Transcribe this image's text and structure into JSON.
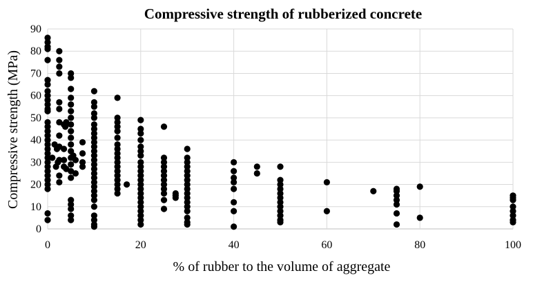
{
  "chart_data": {
    "type": "scatter",
    "title": "Compressive strength of rubberized concrete",
    "xlabel": "% of rubber to the volume of aggregate",
    "ylabel": "Compressive strength (MPa)",
    "xlim": [
      0,
      100
    ],
    "ylim": [
      0,
      90
    ],
    "x_ticks": [
      0,
      20,
      40,
      60,
      80,
      100
    ],
    "y_ticks": [
      0,
      10,
      20,
      30,
      40,
      50,
      60,
      70,
      80,
      90
    ],
    "grid": true,
    "legend": "none",
    "marker_color": "#000000",
    "grid_color": "#d9d9d9",
    "series": [
      {
        "points": [
          [
            0,
            86
          ],
          [
            0,
            84
          ],
          [
            0,
            82
          ],
          [
            0,
            81
          ],
          [
            0,
            76
          ],
          [
            0,
            67
          ],
          [
            0,
            65
          ],
          [
            0,
            62
          ],
          [
            0,
            60
          ],
          [
            0,
            58
          ],
          [
            0,
            56
          ],
          [
            0,
            54
          ],
          [
            0,
            53
          ],
          [
            0,
            48
          ],
          [
            0,
            46
          ],
          [
            0,
            44
          ],
          [
            0,
            42
          ],
          [
            0,
            40
          ],
          [
            0,
            38
          ],
          [
            0,
            36
          ],
          [
            0,
            34
          ],
          [
            0,
            32
          ],
          [
            0,
            30
          ],
          [
            0,
            28
          ],
          [
            0,
            26
          ],
          [
            0,
            24
          ],
          [
            0,
            22
          ],
          [
            0,
            20
          ],
          [
            0,
            18
          ],
          [
            0,
            7
          ],
          [
            0,
            4
          ],
          [
            1,
            32
          ],
          [
            1.5,
            38
          ],
          [
            1.8,
            28
          ],
          [
            2,
            36
          ],
          [
            2.2,
            30
          ],
          [
            2.5,
            80
          ],
          [
            2.5,
            76
          ],
          [
            2.5,
            73
          ],
          [
            2.5,
            70
          ],
          [
            2.5,
            57
          ],
          [
            2.5,
            54
          ],
          [
            2.5,
            48
          ],
          [
            2.5,
            42
          ],
          [
            2.5,
            37
          ],
          [
            2.5,
            31
          ],
          [
            2.5,
            24
          ],
          [
            2.5,
            21
          ],
          [
            3.5,
            47
          ],
          [
            3.5,
            36
          ],
          [
            3.5,
            31
          ],
          [
            3.5,
            28
          ],
          [
            3.8,
            46
          ],
          [
            4,
            48
          ],
          [
            4,
            27
          ],
          [
            5,
            70
          ],
          [
            5,
            68
          ],
          [
            5,
            63
          ],
          [
            5,
            59
          ],
          [
            5,
            56
          ],
          [
            5,
            53
          ],
          [
            5,
            50
          ],
          [
            5,
            47
          ],
          [
            5,
            44
          ],
          [
            5,
            41
          ],
          [
            5,
            38
          ],
          [
            5,
            35
          ],
          [
            5,
            32
          ],
          [
            5,
            29
          ],
          [
            5,
            26
          ],
          [
            5,
            23
          ],
          [
            5,
            13
          ],
          [
            5,
            11
          ],
          [
            5,
            9
          ],
          [
            5,
            6
          ],
          [
            5,
            4
          ],
          [
            5.5,
            33
          ],
          [
            6,
            31
          ],
          [
            6,
            25
          ],
          [
            7.5,
            39
          ],
          [
            7.5,
            34
          ],
          [
            7.5,
            30
          ],
          [
            7.5,
            28
          ],
          [
            10,
            62
          ],
          [
            10,
            57
          ],
          [
            10,
            55
          ],
          [
            10,
            52
          ],
          [
            10,
            50
          ],
          [
            10,
            47
          ],
          [
            10,
            45
          ],
          [
            10,
            43
          ],
          [
            10,
            41
          ],
          [
            10,
            39
          ],
          [
            10,
            37
          ],
          [
            10,
            35
          ],
          [
            10,
            33
          ],
          [
            10,
            31
          ],
          [
            10,
            29
          ],
          [
            10,
            27
          ],
          [
            10,
            25
          ],
          [
            10,
            23
          ],
          [
            10,
            21
          ],
          [
            10,
            19
          ],
          [
            10,
            17
          ],
          [
            10,
            15
          ],
          [
            10,
            13
          ],
          [
            10,
            10
          ],
          [
            10,
            6
          ],
          [
            10,
            4
          ],
          [
            10,
            2
          ],
          [
            10,
            1
          ],
          [
            15,
            59
          ],
          [
            15,
            50
          ],
          [
            15,
            48
          ],
          [
            15,
            46
          ],
          [
            15,
            44
          ],
          [
            15,
            41
          ],
          [
            15,
            38
          ],
          [
            15,
            36
          ],
          [
            15,
            34
          ],
          [
            15,
            32
          ],
          [
            15,
            30
          ],
          [
            15,
            28
          ],
          [
            15,
            26
          ],
          [
            15,
            24
          ],
          [
            15,
            22
          ],
          [
            15,
            20
          ],
          [
            15,
            18
          ],
          [
            15,
            16
          ],
          [
            17,
            20
          ],
          [
            20,
            49
          ],
          [
            20,
            45
          ],
          [
            20,
            43
          ],
          [
            20,
            40
          ],
          [
            20,
            37
          ],
          [
            20,
            35
          ],
          [
            20,
            33
          ],
          [
            20,
            30
          ],
          [
            20,
            28
          ],
          [
            20,
            26
          ],
          [
            20,
            24
          ],
          [
            20,
            22
          ],
          [
            20,
            20
          ],
          [
            20,
            18
          ],
          [
            20,
            16
          ],
          [
            20,
            14
          ],
          [
            20,
            12
          ],
          [
            20,
            10
          ],
          [
            20,
            8
          ],
          [
            20,
            6
          ],
          [
            20,
            4
          ],
          [
            20,
            2
          ],
          [
            25,
            46
          ],
          [
            25,
            32
          ],
          [
            25,
            30
          ],
          [
            25,
            28
          ],
          [
            25,
            26
          ],
          [
            25,
            24
          ],
          [
            25,
            22
          ],
          [
            25,
            20
          ],
          [
            25,
            18
          ],
          [
            25,
            16
          ],
          [
            25,
            13
          ],
          [
            25,
            9
          ],
          [
            27.5,
            16
          ],
          [
            27.5,
            15
          ],
          [
            27.5,
            14
          ],
          [
            30,
            36
          ],
          [
            30,
            32
          ],
          [
            30,
            30
          ],
          [
            30,
            28
          ],
          [
            30,
            26
          ],
          [
            30,
            24
          ],
          [
            30,
            22
          ],
          [
            30,
            20
          ],
          [
            30,
            18
          ],
          [
            30,
            16
          ],
          [
            30,
            14
          ],
          [
            30,
            12
          ],
          [
            30,
            10
          ],
          [
            30,
            8
          ],
          [
            30,
            5
          ],
          [
            30,
            3
          ],
          [
            30,
            2
          ],
          [
            40,
            30
          ],
          [
            40,
            26
          ],
          [
            40,
            23
          ],
          [
            40,
            21
          ],
          [
            40,
            18
          ],
          [
            40,
            12
          ],
          [
            40,
            8
          ],
          [
            40,
            1
          ],
          [
            45,
            28
          ],
          [
            45,
            25
          ],
          [
            50,
            28
          ],
          [
            50,
            22
          ],
          [
            50,
            20
          ],
          [
            50,
            18
          ],
          [
            50,
            16
          ],
          [
            50,
            14
          ],
          [
            50,
            12
          ],
          [
            50,
            10
          ],
          [
            50,
            8
          ],
          [
            50,
            6
          ],
          [
            50,
            4
          ],
          [
            50,
            3
          ],
          [
            60,
            21
          ],
          [
            60,
            8
          ],
          [
            70,
            17
          ],
          [
            75,
            18
          ],
          [
            75,
            17
          ],
          [
            75,
            15
          ],
          [
            75,
            13
          ],
          [
            75,
            11
          ],
          [
            75,
            7
          ],
          [
            75,
            2
          ],
          [
            80,
            19
          ],
          [
            80,
            5
          ],
          [
            100,
            15
          ],
          [
            100,
            14
          ],
          [
            100,
            13
          ],
          [
            100,
            10
          ],
          [
            100,
            8
          ],
          [
            100,
            6
          ],
          [
            100,
            4
          ],
          [
            100,
            3
          ]
        ]
      }
    ]
  }
}
